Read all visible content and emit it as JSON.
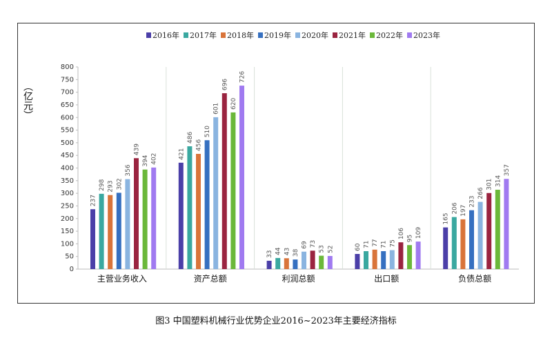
{
  "caption": "图3 中国塑料机械行业优势企业2016~2023年主要经济指标",
  "chart_data": {
    "type": "bar",
    "title": "",
    "ylabel": "（亿元）",
    "xlabel": "",
    "ylim": [
      0,
      800
    ],
    "yticks": [
      0,
      50,
      100,
      150,
      200,
      250,
      300,
      350,
      400,
      450,
      500,
      550,
      600,
      650,
      700,
      750,
      800
    ],
    "grid": false,
    "legend": "top",
    "categories": [
      "主营业务收入",
      "资产总额",
      "利润总额",
      "出口额",
      "负债总额"
    ],
    "series": [
      {
        "name": "2016年",
        "color": "#4b3fa8",
        "values": [
          237,
          421,
          33,
          60,
          165
        ]
      },
      {
        "name": "2017年",
        "color": "#3aa8a0",
        "values": [
          298,
          486,
          44,
          71,
          206
        ]
      },
      {
        "name": "2018年",
        "color": "#d9743a",
        "values": [
          293,
          456,
          43,
          77,
          197
        ]
      },
      {
        "name": "2019年",
        "color": "#3670c0",
        "values": [
          302,
          510,
          38,
          71,
          233
        ]
      },
      {
        "name": "2020年",
        "color": "#8ab4e0",
        "values": [
          356,
          601,
          69,
          75,
          266
        ]
      },
      {
        "name": "2021年",
        "color": "#9a2440",
        "values": [
          439,
          696,
          73,
          106,
          301
        ]
      },
      {
        "name": "2022年",
        "color": "#6bb83a",
        "values": [
          394,
          620,
          53,
          95,
          314
        ]
      },
      {
        "name": "2023年",
        "color": "#a07af0",
        "values": [
          402,
          726,
          52,
          109,
          357
        ]
      }
    ]
  }
}
